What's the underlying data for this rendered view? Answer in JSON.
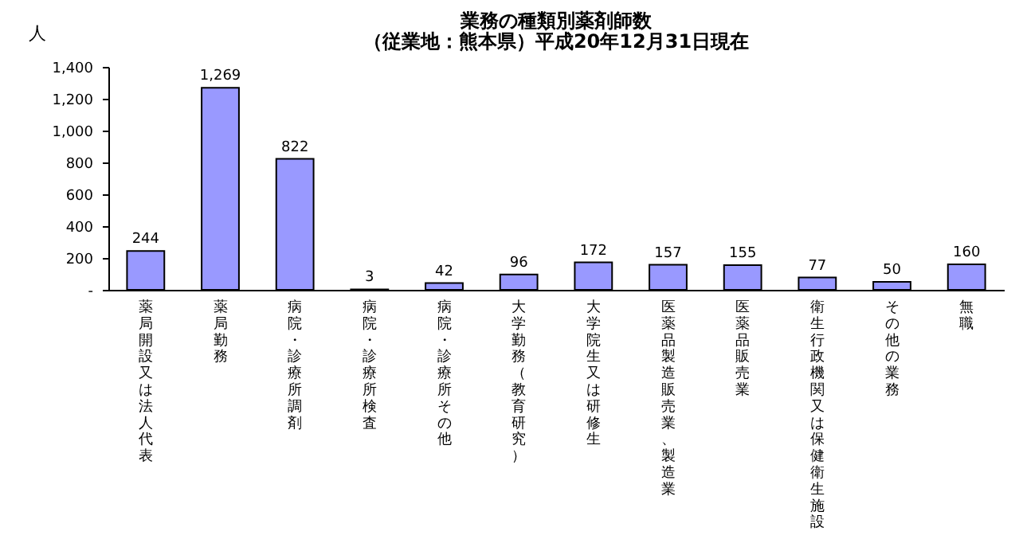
{
  "chart_data": {
    "type": "bar",
    "title": "業務の種類別薬剤師数",
    "subtitle": "（従業地：熊本県）平成20年12月31日現在",
    "ylabel": "人",
    "categories": [
      "薬局開設又は法人代表",
      "薬局勤務",
      "病院・診療所調剤",
      "病院・診療所検査",
      "病院・診療所その他",
      "大学勤務（教育研究）",
      "大学院生又は研修生",
      "医薬品製造販売業、製造業",
      "医薬品販売業",
      "衛生行政機関又は保健衛生施設",
      "その他の業務",
      "無職"
    ],
    "values": [
      244,
      1269,
      822,
      3,
      42,
      96,
      172,
      157,
      155,
      77,
      50,
      160
    ],
    "value_labels": [
      "244",
      "1,269",
      "822",
      "3",
      "42",
      "96",
      "172",
      "157",
      "155",
      "77",
      "50",
      "160"
    ],
    "color": "#9999ff",
    "ylim": [
      0,
      1400
    ],
    "yticks": [
      {
        "value": 0,
        "label": "-"
      },
      200,
      400,
      600,
      800,
      {
        "value": 1000,
        "label": "1,000"
      },
      {
        "value": 1200,
        "label": "1,200"
      },
      {
        "value": 1400,
        "label": "1,400"
      }
    ],
    "grid": false
  }
}
